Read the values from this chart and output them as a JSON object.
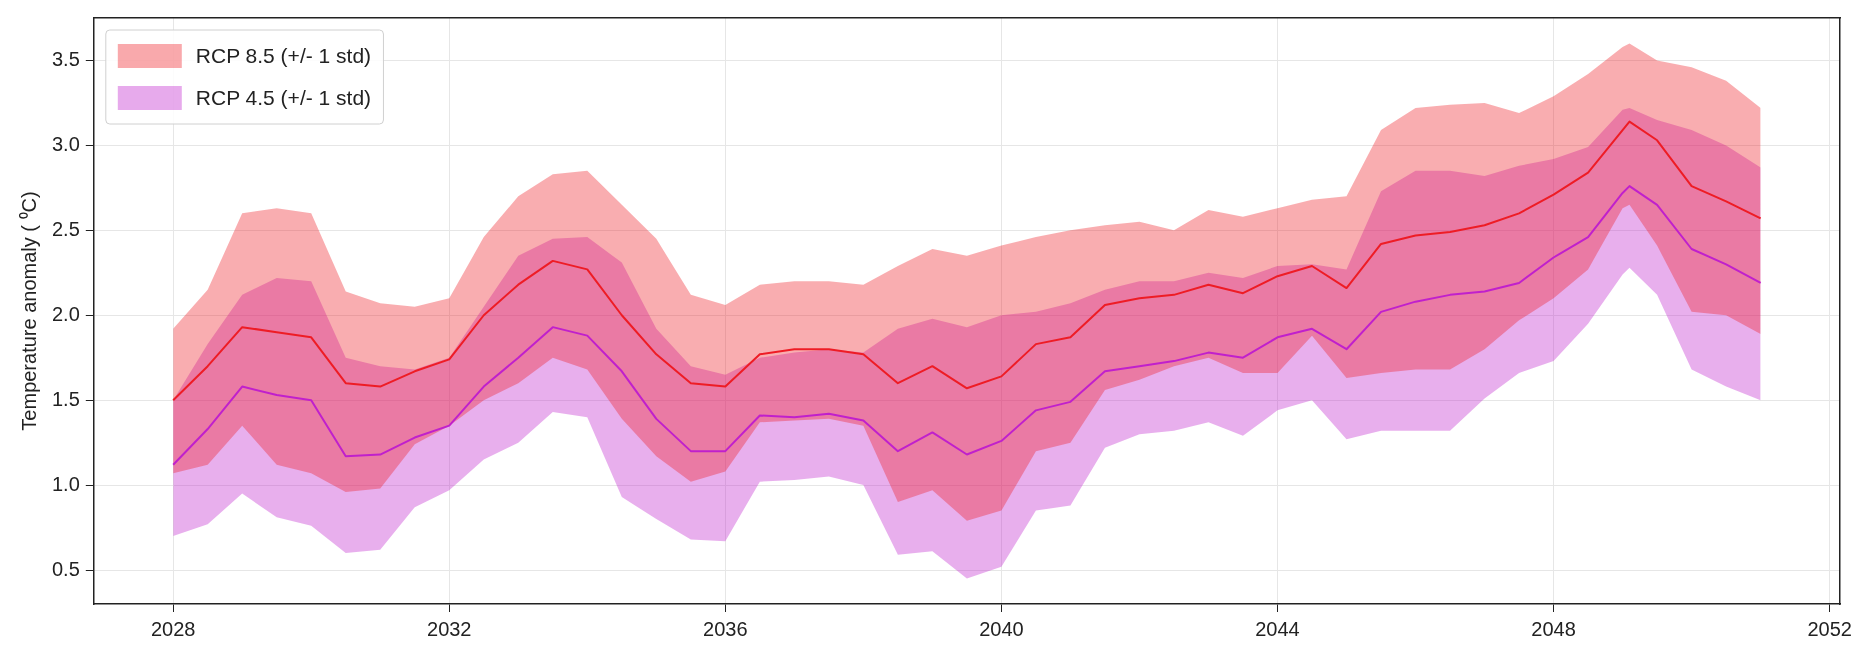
{
  "chart_data": {
    "type": "line",
    "ylabel": "Temperature anomaly ( ⁰C)",
    "xlim": [
      2026.85,
      2052.15
    ],
    "xticks": [
      2028,
      2032,
      2036,
      2040,
      2044,
      2048,
      2052
    ],
    "ylim": [
      0.3,
      3.75
    ],
    "yticks": [
      {
        "value": 0.5,
        "label": "0.5"
      },
      {
        "value": 1,
        "label": "1.0"
      },
      {
        "value": 1.5,
        "label": "1.5"
      },
      {
        "value": 2,
        "label": "2.0"
      },
      {
        "value": 2.5,
        "label": "2.5"
      },
      {
        "value": 3,
        "label": "3.0"
      },
      {
        "value": 3.5,
        "label": "3.5"
      }
    ],
    "grid": true,
    "legend": "top left",
    "marker": "none",
    "line_style": "solid",
    "x": [
      2028,
      2028.5,
      2029,
      2029.5,
      2030,
      2030.5,
      2031,
      2031.5,
      2032,
      2032.5,
      2033,
      2033.5,
      2034,
      2034.5,
      2035,
      2035.5,
      2036,
      2036.5,
      2037,
      2037.5,
      2038,
      2038.5,
      2039,
      2039.5,
      2040,
      2040.5,
      2041,
      2041.5,
      2042,
      2042.5,
      2043,
      2043.5,
      2044,
      2044.5,
      2045,
      2045.5,
      2046,
      2046.5,
      2047,
      2047.5,
      2048,
      2048.5,
      2049,
      2049.1,
      2049.5,
      2050,
      2050.5,
      2051
    ],
    "series": [
      {
        "name": "RCP 8.5 (+/- 1 std)",
        "color": "#ee1c25",
        "values": [
          1.5,
          1.7,
          1.93,
          1.9,
          1.87,
          1.6,
          1.58,
          1.67,
          1.74,
          2.0,
          2.18,
          2.32,
          2.27,
          2.0,
          1.77,
          1.6,
          1.58,
          1.77,
          1.8,
          1.8,
          1.77,
          1.6,
          1.7,
          1.57,
          1.64,
          1.83,
          1.87,
          2.06,
          2.1,
          2.12,
          2.18,
          2.13,
          2.23,
          2.29,
          2.16,
          2.42,
          2.47,
          2.49,
          2.53,
          2.6,
          2.71,
          2.84,
          3.09,
          3.14,
          3.03,
          2.76,
          2.67,
          2.57
        ],
        "upper": [
          1.92,
          2.15,
          2.6,
          2.63,
          2.6,
          2.14,
          2.07,
          2.05,
          2.1,
          2.46,
          2.7,
          2.83,
          2.85,
          2.65,
          2.45,
          2.12,
          2.06,
          2.18,
          2.2,
          2.2,
          2.18,
          2.29,
          2.39,
          2.35,
          2.41,
          2.46,
          2.5,
          2.53,
          2.55,
          2.5,
          2.62,
          2.58,
          2.63,
          2.68,
          2.7,
          3.09,
          3.22,
          3.24,
          3.25,
          3.19,
          3.29,
          3.42,
          3.58,
          3.6,
          3.5,
          3.46,
          3.38,
          3.22
        ],
        "lower": [
          1.07,
          1.12,
          1.35,
          1.12,
          1.07,
          0.96,
          0.98,
          1.24,
          1.35,
          1.5,
          1.6,
          1.75,
          1.68,
          1.39,
          1.17,
          1.02,
          1.08,
          1.37,
          1.38,
          1.39,
          1.35,
          0.9,
          0.97,
          0.79,
          0.85,
          1.2,
          1.25,
          1.56,
          1.62,
          1.7,
          1.75,
          1.66,
          1.66,
          1.88,
          1.63,
          1.66,
          1.68,
          1.68,
          1.8,
          1.97,
          2.1,
          2.27,
          2.63,
          2.65,
          2.41,
          2.02,
          2.0,
          1.89
        ]
      },
      {
        "name": "RCP 4.5 (+/- 1 std)",
        "color": "#c020cc",
        "values": [
          1.12,
          1.33,
          1.58,
          1.53,
          1.5,
          1.17,
          1.18,
          1.28,
          1.35,
          1.58,
          1.75,
          1.93,
          1.88,
          1.67,
          1.39,
          1.2,
          1.2,
          1.41,
          1.4,
          1.42,
          1.38,
          1.2,
          1.31,
          1.18,
          1.26,
          1.44,
          1.49,
          1.67,
          1.7,
          1.73,
          1.78,
          1.75,
          1.87,
          1.92,
          1.8,
          2.02,
          2.08,
          2.12,
          2.14,
          2.19,
          2.34,
          2.46,
          2.72,
          2.76,
          2.65,
          2.39,
          2.3,
          2.19
        ],
        "upper": [
          1.5,
          1.83,
          2.12,
          2.22,
          2.2,
          1.75,
          1.7,
          1.68,
          1.75,
          2.05,
          2.35,
          2.45,
          2.46,
          2.31,
          1.92,
          1.7,
          1.65,
          1.75,
          1.78,
          1.8,
          1.78,
          1.92,
          1.98,
          1.93,
          2.0,
          2.02,
          2.07,
          2.15,
          2.2,
          2.2,
          2.25,
          2.22,
          2.29,
          2.3,
          2.27,
          2.73,
          2.85,
          2.85,
          2.82,
          2.88,
          2.92,
          2.99,
          3.21,
          3.22,
          3.15,
          3.09,
          3.0,
          2.87
        ],
        "lower": [
          0.7,
          0.77,
          0.95,
          0.81,
          0.76,
          0.6,
          0.62,
          0.87,
          0.97,
          1.15,
          1.25,
          1.43,
          1.4,
          0.93,
          0.8,
          0.68,
          0.67,
          1.02,
          1.03,
          1.05,
          1.0,
          0.59,
          0.61,
          0.45,
          0.52,
          0.85,
          0.88,
          1.22,
          1.3,
          1.32,
          1.37,
          1.29,
          1.44,
          1.5,
          1.27,
          1.32,
          1.32,
          1.32,
          1.51,
          1.66,
          1.73,
          1.95,
          2.24,
          2.28,
          2.12,
          1.68,
          1.58,
          1.5
        ]
      }
    ]
  }
}
